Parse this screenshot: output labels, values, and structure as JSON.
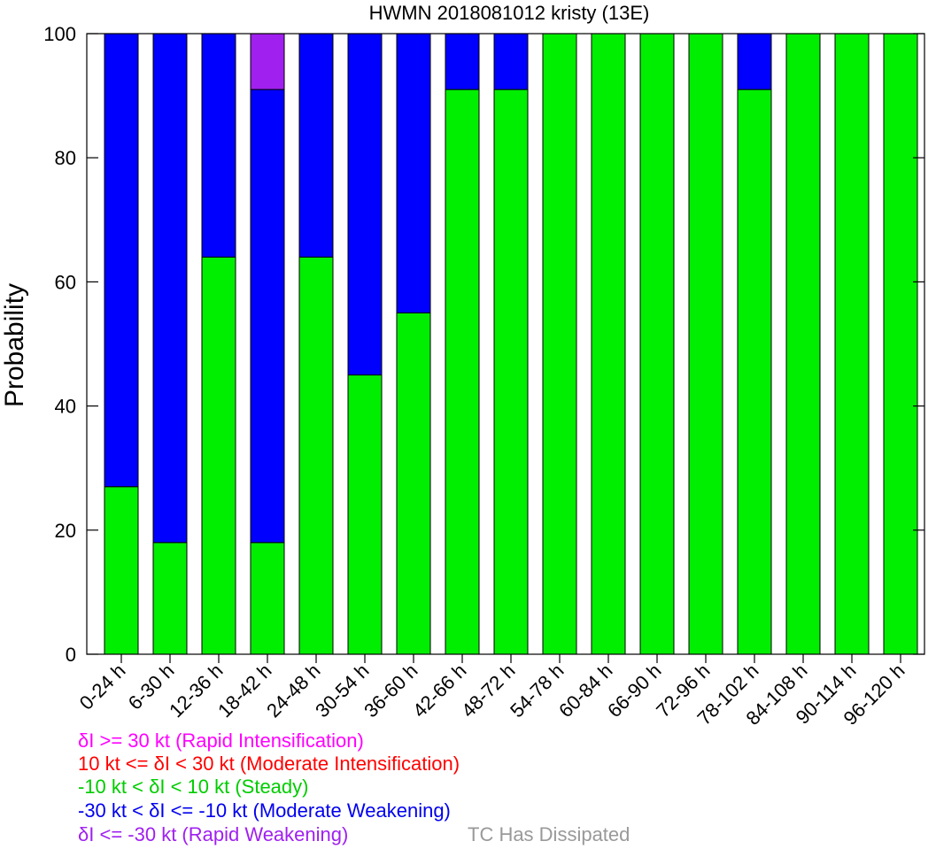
{
  "chart_data": {
    "type": "bar",
    "stacked": true,
    "title": "HWMN 2018081012 kristy (13E)",
    "ylabel": "Probability",
    "xlabel": "",
    "ylim": [
      0,
      100
    ],
    "yticks": [
      "0",
      "20",
      "40",
      "60",
      "80",
      "100"
    ],
    "grid": false,
    "categories": [
      "0-24 h",
      "6-30 h",
      "12-36 h",
      "18-42 h",
      "24-48 h",
      "30-54 h",
      "36-60 h",
      "42-66 h",
      "48-72 h",
      "54-78 h",
      "60-84 h",
      "66-90 h",
      "72-96 h",
      "78-102 h",
      "84-108 h",
      "90-114 h",
      "96-120 h"
    ],
    "series": [
      {
        "name": "-10 kt < δI < 10 kt (Steady)",
        "color": "#00ee00",
        "values": [
          27,
          18,
          64,
          18,
          64,
          45,
          55,
          91,
          91,
          100,
          100,
          100,
          100,
          91,
          100,
          100,
          100
        ]
      },
      {
        "name": "-30 kt < δI <= -10 kt (Moderate Weakening)",
        "color": "#0000ff",
        "values": [
          73,
          82,
          36,
          73,
          36,
          55,
          45,
          9,
          9,
          0,
          0,
          0,
          0,
          9,
          0,
          0,
          0
        ]
      },
      {
        "name": "δI >= 30 kt (Rapid Intensification)",
        "color": "#ff00ff",
        "values": [
          0,
          0,
          0,
          0,
          0,
          0,
          0,
          0,
          0,
          0,
          0,
          0,
          0,
          0,
          0,
          0,
          0
        ]
      },
      {
        "name": "δI <= -30 kt (Rapid Weakening)",
        "color": "#a020f0",
        "values": [
          0,
          0,
          0,
          9,
          0,
          0,
          0,
          0,
          0,
          0,
          0,
          0,
          0,
          0,
          0,
          0,
          0
        ]
      }
    ],
    "legend": {
      "placement": "bottom-left",
      "items": [
        {
          "text": "δI >= 30 kt (Rapid Intensification)",
          "color": "#ff00ff"
        },
        {
          "text": "10 kt <= δI < 30 kt (Moderate Intensification)",
          "color": "#ff0000"
        },
        {
          "text": "-10 kt < δI < 10 kt (Steady)",
          "color": "#00cc00"
        },
        {
          "text": "-30 kt < δI <= -10 kt (Moderate Weakening)",
          "color": "#0000ee"
        },
        {
          "text": "δI <= -30 kt (Rapid Weakening)",
          "color": "#a020f0"
        }
      ],
      "dissipated": {
        "text": "TC Has Dissipated",
        "color": "#999999"
      }
    }
  }
}
